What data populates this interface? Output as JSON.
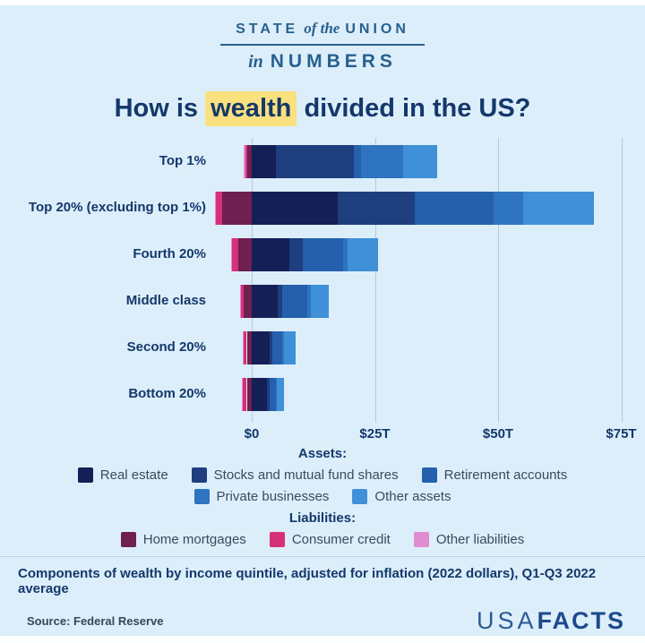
{
  "logo": {
    "word1": "STATE",
    "word2": "of the",
    "word3": "UNION",
    "word4": "in",
    "word5": "NUMBERS"
  },
  "title": {
    "prefix": "How is",
    "highlight": "wealth",
    "suffix": "divided in the US?"
  },
  "legend": {
    "assets_title": "Assets:",
    "liabilities_title": "Liabilities:",
    "rows": [
      {
        "items": [
          "Real estate",
          "Stocks and mutual fund shares",
          "Retirement accounts"
        ]
      },
      {
        "items": [
          "Private businesses",
          "Other assets"
        ]
      },
      {
        "items": [
          "Home mortgages",
          "Consumer credit",
          "Other liabilities"
        ]
      }
    ]
  },
  "footer": {
    "note": "Components of wealth by income quintile, adjusted for inflation (2022 dollars), Q1-Q3 2022 average",
    "source": "Source: Federal Reserve",
    "brand_light": "USA",
    "brand_bold": "FACTS"
  },
  "colors": {
    "background": "#dceefa",
    "navy_text": "#14386b",
    "highlight_yellow": "#f9e17f",
    "gridline": "#b7c9d8",
    "logo_blue": "#28608e",
    "brand_blue": "#1d4a8c"
  },
  "chart_data": {
    "type": "bar",
    "orientation": "horizontal",
    "stacked": true,
    "unit": "trillions of USD",
    "title": "How is wealth divided in the US?",
    "categories": [
      "Top 1%",
      "Top 20% (excluding top 1%)",
      "Fourth 20%",
      "Middle class",
      "Second 20%",
      "Bottom 20%"
    ],
    "series": [
      {
        "name": "Real estate",
        "group": "assets",
        "color": "#141f56",
        "values": [
          4.9,
          17.5,
          7.6,
          5.3,
          3.6,
          3.0
        ]
      },
      {
        "name": "Stocks and mutual fund shares",
        "group": "assets",
        "color": "#1e3e7e",
        "values": [
          15.8,
          15.5,
          2.7,
          0.9,
          0.5,
          0.6
        ]
      },
      {
        "name": "Retirement accounts",
        "group": "assets",
        "color": "#2560ac",
        "values": [
          1.5,
          16.0,
          8.2,
          5.1,
          2.0,
          1.3
        ]
      },
      {
        "name": "Private businesses",
        "group": "assets",
        "color": "#2e74c0",
        "values": [
          8.5,
          6.0,
          0.9,
          0.7,
          0.4,
          0.2
        ]
      },
      {
        "name": "Other assets",
        "group": "assets",
        "color": "#3f90d8",
        "values": [
          7.0,
          14.5,
          6.2,
          3.6,
          2.4,
          1.4
        ]
      },
      {
        "name": "Home mortgages",
        "group": "liabilities",
        "color": "#6e2050",
        "values": [
          -0.9,
          -6.0,
          -2.7,
          -1.6,
          -1.0,
          -1.0
        ]
      },
      {
        "name": "Consumer credit",
        "group": "liabilities",
        "color": "#d63077",
        "values": [
          -0.4,
          -1.3,
          -1.3,
          -0.7,
          -0.6,
          -0.8
        ]
      },
      {
        "name": "Other liabilities",
        "group": "liabilities",
        "color": "#e08bd2",
        "values": [
          -0.3,
          -0.2,
          -0.2,
          -0.1,
          -0.2,
          -0.2
        ]
      }
    ],
    "ticks": [
      {
        "label": "$0",
        "value": 0
      },
      {
        "label": "$25T",
        "value": 25
      },
      {
        "label": "$50T",
        "value": 50
      },
      {
        "label": "$75T",
        "value": 75
      }
    ],
    "xlim": [
      -8,
      78
    ],
    "grid": true,
    "legend_position": "bottom"
  }
}
